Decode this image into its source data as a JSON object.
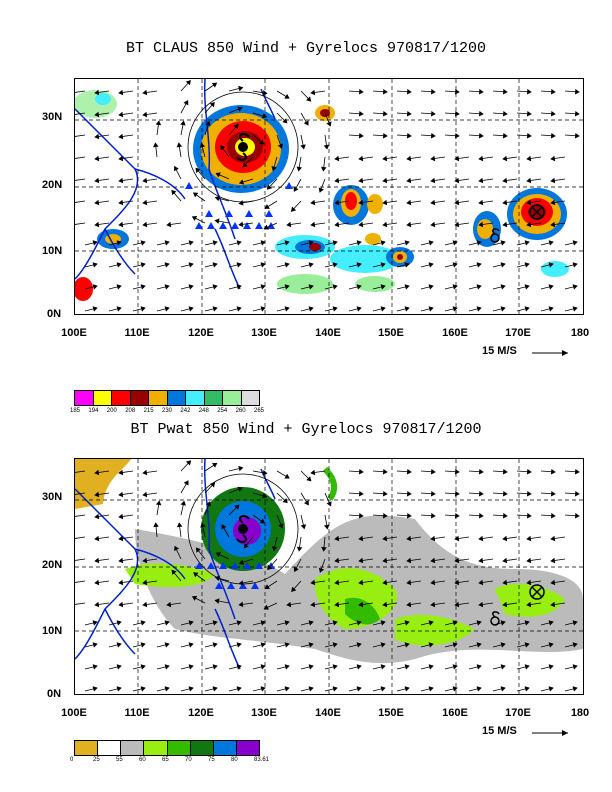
{
  "panel1": {
    "title": "BT CLAUS 850 Wind + Gyrelocs 970817/1200",
    "lat_labels": [
      "30N",
      "20N",
      "10N",
      "0N"
    ],
    "lon_labels": [
      "100E",
      "110E",
      "120E",
      "130E",
      "140E",
      "150E",
      "160E",
      "170E",
      "180"
    ],
    "scale_label": "15 M/S",
    "colorbar": {
      "colors": [
        "#ff00ff",
        "#ffff00",
        "#ff0000",
        "#990000",
        "#f0b000",
        "#0077dd",
        "#44eeff",
        "#33bb66",
        "#99ee99",
        "#dddddd"
      ],
      "labels": [
        "185",
        "194",
        "200",
        "208",
        "215",
        "230",
        "242",
        "248",
        "254",
        "260",
        "265"
      ]
    }
  },
  "panel2": {
    "title": "BT Pwat 850 Wind + Gyrelocs 970817/1200",
    "lat_labels": [
      "30N",
      "20N",
      "10N",
      "0N"
    ],
    "lon_labels": [
      "100E",
      "110E",
      "120E",
      "130E",
      "140E",
      "150E",
      "160E",
      "170E",
      "180"
    ],
    "scale_label": "15 M/S",
    "colorbar": {
      "colors": [
        "#e0b020",
        "#ffffff",
        "#bbbbbb",
        "#99ee11",
        "#33bb00",
        "#117711",
        "#0077dd",
        "#8800cc"
      ],
      "labels": [
        "0",
        "25",
        "55",
        "60",
        "65",
        "70",
        "75",
        "80",
        "83.61"
      ]
    }
  },
  "map_extent": {
    "lon_range": [
      100,
      180
    ],
    "lat_range": [
      0,
      37
    ]
  }
}
